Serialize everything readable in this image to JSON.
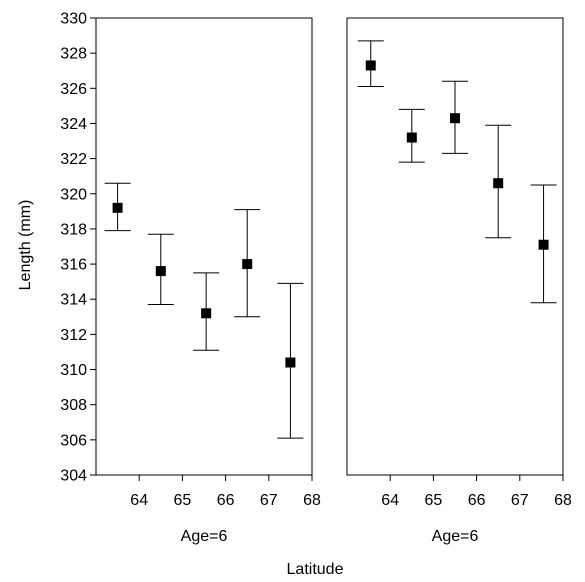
{
  "chart_data": {
    "type": "scatter",
    "ylabel": "Length (mm)",
    "xlabel": "Latitude",
    "ylim": [
      304,
      330
    ],
    "y_ticks": [
      "304",
      "306",
      "308",
      "310",
      "312",
      "314",
      "316",
      "318",
      "320",
      "322",
      "324",
      "326",
      "328",
      "330"
    ],
    "xlim": [
      63,
      68
    ],
    "x_ticks": [
      "64",
      "65",
      "66",
      "67",
      "68"
    ],
    "error_bars": true,
    "grid": false,
    "panels": [
      {
        "title": "Age=6",
        "points": [
          {
            "x": 63.5,
            "y": 319.2,
            "low": 317.9,
            "high": 320.6
          },
          {
            "x": 64.5,
            "y": 315.6,
            "low": 313.7,
            "high": 317.7
          },
          {
            "x": 65.55,
            "y": 313.2,
            "low": 311.1,
            "high": 315.5
          },
          {
            "x": 66.5,
            "y": 316.0,
            "low": 313.0,
            "high": 319.1
          },
          {
            "x": 67.5,
            "y": 310.4,
            "low": 306.1,
            "high": 314.9
          }
        ]
      },
      {
        "title": "Age=6",
        "points": [
          {
            "x": 63.55,
            "y": 327.3,
            "low": 326.1,
            "high": 328.7
          },
          {
            "x": 64.5,
            "y": 323.2,
            "low": 321.8,
            "high": 324.8
          },
          {
            "x": 65.5,
            "y": 324.3,
            "low": 322.3,
            "high": 326.4
          },
          {
            "x": 66.5,
            "y": 320.6,
            "low": 317.5,
            "high": 323.9
          },
          {
            "x": 67.55,
            "y": 317.1,
            "low": 313.8,
            "high": 320.5
          }
        ]
      }
    ]
  }
}
